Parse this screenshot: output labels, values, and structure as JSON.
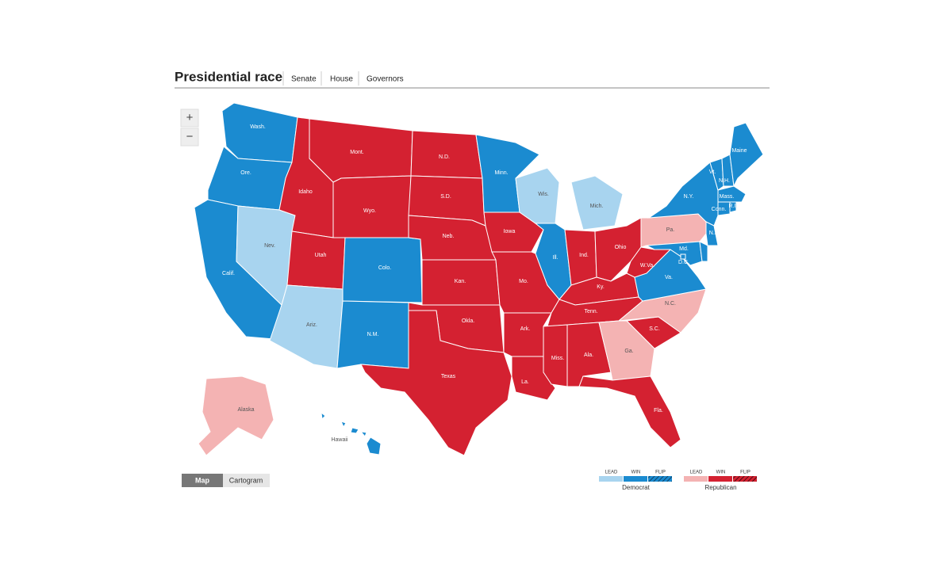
{
  "header": {
    "title": "Presidential race",
    "tabs": [
      "Senate",
      "House",
      "Governors"
    ]
  },
  "zoom": [
    "+",
    "−"
  ],
  "view_toggle": [
    "Map",
    "Cartogram"
  ],
  "legend": {
    "parties": [
      {
        "key": "dem",
        "name": "Democrat",
        "columns": [
          "LEAD",
          "WIN",
          "FLIP"
        ],
        "colors": {
          "lead": "#a8d4ef",
          "win": "#1b8bd0",
          "flip": "#16527e"
        }
      },
      {
        "key": "rep",
        "name": "Republican",
        "columns": [
          "LEAD",
          "WIN",
          "FLIP"
        ],
        "colors": {
          "lead": "#f4b3b3",
          "win": "#d42131",
          "flip": "#7c1019"
        }
      }
    ]
  },
  "map": {
    "states": [
      {
        "label": "Wash.",
        "party": "dem",
        "status": "win"
      },
      {
        "label": "Ore.",
        "party": "dem",
        "status": "win"
      },
      {
        "label": "Calif.",
        "party": "dem",
        "status": "win"
      },
      {
        "label": "Nev.",
        "party": "dem",
        "status": "lead"
      },
      {
        "label": "Idaho",
        "party": "rep",
        "status": "win"
      },
      {
        "label": "Mont.",
        "party": "rep",
        "status": "win"
      },
      {
        "label": "Wyo.",
        "party": "rep",
        "status": "win"
      },
      {
        "label": "Utah",
        "party": "rep",
        "status": "win"
      },
      {
        "label": "Colo.",
        "party": "dem",
        "status": "win"
      },
      {
        "label": "Ariz.",
        "party": "dem",
        "status": "lead"
      },
      {
        "label": "N.M.",
        "party": "dem",
        "status": "win"
      },
      {
        "label": "N.D.",
        "party": "rep",
        "status": "win"
      },
      {
        "label": "S.D.",
        "party": "rep",
        "status": "win"
      },
      {
        "label": "Neb.",
        "party": "rep",
        "status": "win"
      },
      {
        "label": "Kan.",
        "party": "rep",
        "status": "win"
      },
      {
        "label": "Okla.",
        "party": "rep",
        "status": "win"
      },
      {
        "label": "Texas",
        "party": "rep",
        "status": "win"
      },
      {
        "label": "Minn.",
        "party": "dem",
        "status": "win"
      },
      {
        "label": "Iowa",
        "party": "rep",
        "status": "win"
      },
      {
        "label": "Mo.",
        "party": "rep",
        "status": "win"
      },
      {
        "label": "Ark.",
        "party": "rep",
        "status": "win"
      },
      {
        "label": "La.",
        "party": "rep",
        "status": "win"
      },
      {
        "label": "Wis.",
        "party": "dem",
        "status": "lead"
      },
      {
        "label": "Ill.",
        "party": "dem",
        "status": "win"
      },
      {
        "label": "Mich.",
        "party": "dem",
        "status": "lead"
      },
      {
        "label": "Ind.",
        "party": "rep",
        "status": "win"
      },
      {
        "label": "Ohio",
        "party": "rep",
        "status": "win"
      },
      {
        "label": "Ky.",
        "party": "rep",
        "status": "win"
      },
      {
        "label": "Tenn.",
        "party": "rep",
        "status": "win"
      },
      {
        "label": "Miss.",
        "party": "rep",
        "status": "win"
      },
      {
        "label": "Ala.",
        "party": "rep",
        "status": "win"
      },
      {
        "label": "Ga.",
        "party": "rep",
        "status": "lead"
      },
      {
        "label": "Fla.",
        "party": "rep",
        "status": "win"
      },
      {
        "label": "S.C.",
        "party": "rep",
        "status": "win"
      },
      {
        "label": "N.C.",
        "party": "rep",
        "status": "lead"
      },
      {
        "label": "Va.",
        "party": "dem",
        "status": "win"
      },
      {
        "label": "W.Va.",
        "party": "rep",
        "status": "win"
      },
      {
        "label": "Pa.",
        "party": "rep",
        "status": "lead"
      },
      {
        "label": "N.Y.",
        "party": "dem",
        "status": "win"
      },
      {
        "label": "Md.",
        "party": "dem",
        "status": "win"
      },
      {
        "label": "Del.",
        "party": "dem",
        "status": "win"
      },
      {
        "label": "N.J.",
        "party": "dem",
        "status": "win"
      },
      {
        "label": "Vt.",
        "party": "dem",
        "status": "win"
      },
      {
        "label": "N.H.",
        "party": "dem",
        "status": "win"
      },
      {
        "label": "Maine",
        "party": "dem",
        "status": "win"
      },
      {
        "label": "Mass.",
        "party": "dem",
        "status": "win"
      },
      {
        "label": "Conn.",
        "party": "dem",
        "status": "win"
      },
      {
        "label": "R.I.",
        "party": "dem",
        "status": "win"
      },
      {
        "label": "D.C.",
        "party": "dem",
        "status": "win"
      },
      {
        "label": "Alaska",
        "party": "rep",
        "status": "lead"
      },
      {
        "label": "Hawaii",
        "party": "dem",
        "status": "win"
      }
    ]
  }
}
